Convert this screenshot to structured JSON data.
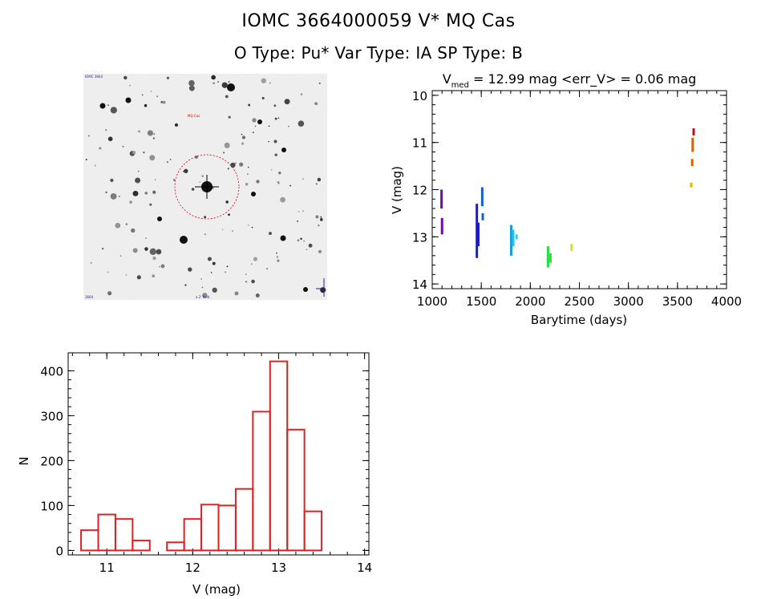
{
  "header": {
    "line1": "IOMC 3664000059    V* MQ Cas",
    "line2": "O Type: Pu*  Var Type: IA  SP Type: B"
  },
  "chart_data": [
    {
      "type": "scatter",
      "title_parts": {
        "prefix": "V",
        "sub": "med",
        "suffix": " = 12.99 mag <err_V> = 0.06 mag"
      },
      "xlabel": "Barytime (days)",
      "ylabel": "V (mag)",
      "xlim": [
        1000,
        4000
      ],
      "ylim": [
        14.1,
        9.9
      ],
      "y_inverted": true,
      "xticks": [
        1000,
        1500,
        2000,
        2500,
        3000,
        3500,
        4000
      ],
      "yticks": [
        10,
        11,
        12,
        13,
        14
      ],
      "points": [
        {
          "x": 1095,
          "y1": 12.0,
          "y2": 12.4,
          "color": "#6a0dad"
        },
        {
          "x": 1100,
          "y1": 12.6,
          "y2": 12.95,
          "color": "#6a0dad"
        },
        {
          "x": 1455,
          "y1": 12.3,
          "y2": 13.45,
          "color": "#1a1ad0"
        },
        {
          "x": 1470,
          "y1": 12.7,
          "y2": 13.2,
          "color": "#1a1ad0"
        },
        {
          "x": 1510,
          "y1": 11.95,
          "y2": 12.35,
          "color": "#1060d0"
        },
        {
          "x": 1515,
          "y1": 12.5,
          "y2": 12.65,
          "color": "#1060d0"
        },
        {
          "x": 1805,
          "y1": 12.75,
          "y2": 13.4,
          "color": "#10a0e0"
        },
        {
          "x": 1825,
          "y1": 12.85,
          "y2": 13.2,
          "color": "#20c0f0"
        },
        {
          "x": 1860,
          "y1": 12.95,
          "y2": 13.05,
          "color": "#20d0f0"
        },
        {
          "x": 2180,
          "y1": 13.2,
          "y2": 13.65,
          "color": "#20e040"
        },
        {
          "x": 2205,
          "y1": 13.35,
          "y2": 13.55,
          "color": "#30e030"
        },
        {
          "x": 2420,
          "y1": 13.15,
          "y2": 13.3,
          "color": "#d8e020"
        },
        {
          "x": 3640,
          "y1": 11.85,
          "y2": 11.95,
          "color": "#f0b000"
        },
        {
          "x": 3650,
          "y1": 11.35,
          "y2": 11.5,
          "color": "#e06000"
        },
        {
          "x": 3655,
          "y1": 10.9,
          "y2": 11.2,
          "color": "#e06000"
        },
        {
          "x": 3665,
          "y1": 10.7,
          "y2": 10.85,
          "color": "#c01010"
        }
      ]
    },
    {
      "type": "bar",
      "xlabel": "V (mag)",
      "ylabel": "N",
      "xlim": [
        10.55,
        14.05
      ],
      "ylim": [
        -10,
        440
      ],
      "xticks": [
        11,
        12,
        13,
        14
      ],
      "yticks": [
        0,
        100,
        200,
        300,
        400
      ],
      "bin_edges": [
        10.7,
        10.9,
        11.1,
        11.3,
        11.5,
        11.7,
        11.9,
        12.1,
        12.3,
        12.5,
        12.7,
        12.9,
        13.1,
        13.3,
        13.5,
        13.7
      ],
      "counts": [
        45,
        80,
        70,
        22,
        0,
        18,
        70,
        102,
        100,
        137,
        309,
        421,
        269,
        87,
        0
      ],
      "bar_color": "#dd2222"
    }
  ],
  "sky_image": {
    "corner_labels": {
      "top_left": "IOMC 3664",
      "bottom_left": "3664",
      "bottom_center": "a 2' field",
      "marker_label": "MQ Cas"
    }
  }
}
